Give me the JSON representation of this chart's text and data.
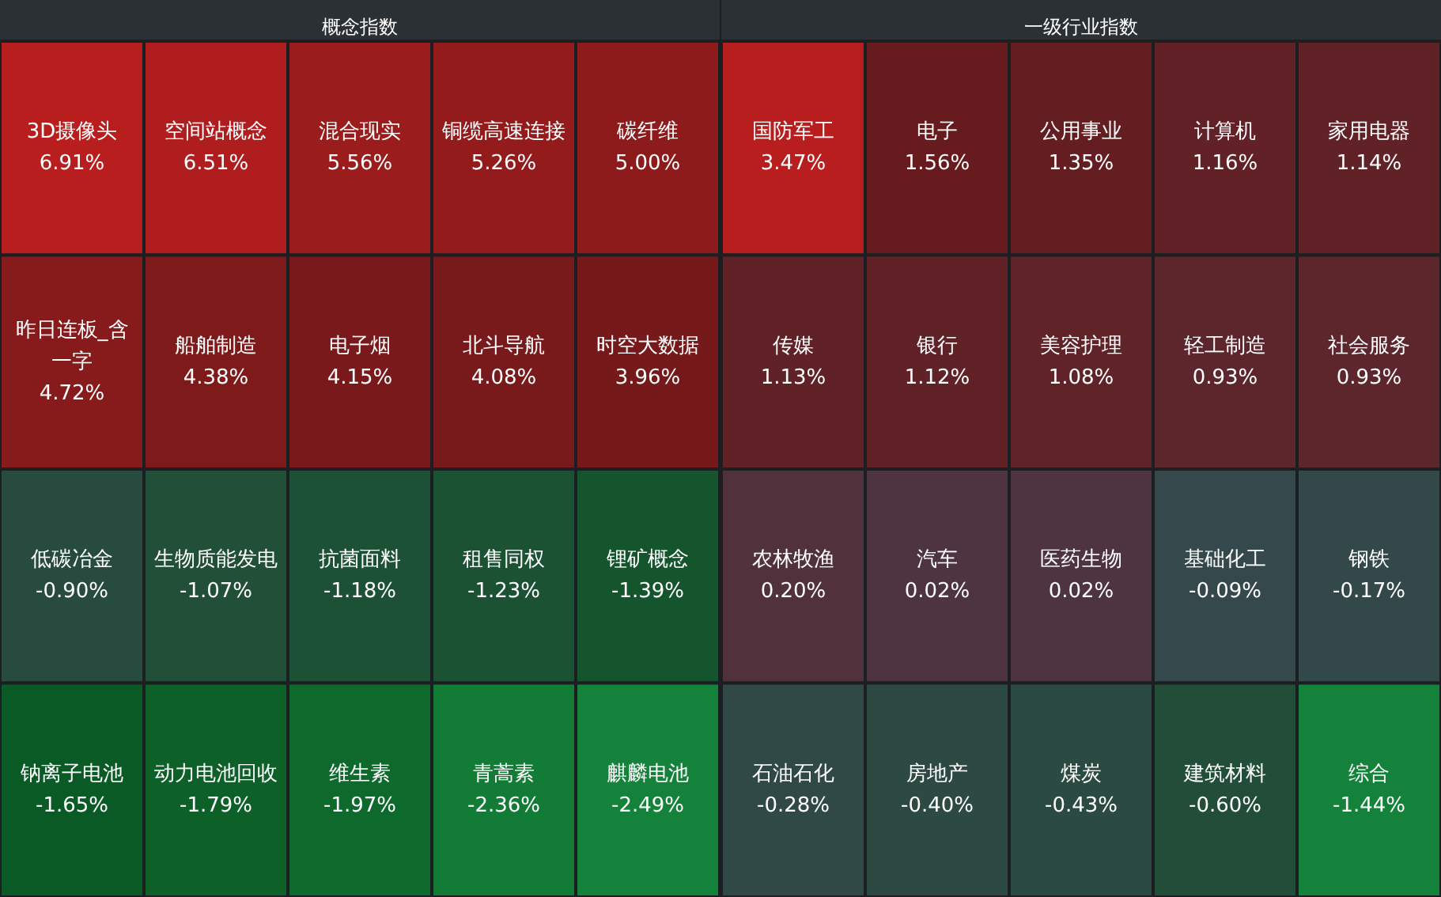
{
  "chart_data": [
    {
      "type": "other",
      "title": "概念指数",
      "categories": [
        "3D摄像头",
        "空间站概念",
        "混合现实",
        "铜缆高速连接",
        "碳纤维",
        "昨日连板_含一字",
        "船舶制造",
        "电子烟",
        "北斗导航",
        "时空大数据",
        "低碳冶金",
        "生物质能发电",
        "抗菌面料",
        "租售同权",
        "锂矿概念",
        "钠离子电池",
        "动力电池回收",
        "维生素",
        "青蒿素",
        "麒麟电池"
      ],
      "values": [
        6.91,
        6.51,
        5.56,
        5.26,
        5.0,
        4.72,
        4.38,
        4.15,
        4.08,
        3.96,
        -0.9,
        -1.07,
        -1.18,
        -1.23,
        -1.39,
        -1.65,
        -1.79,
        -1.97,
        -2.36,
        -2.49
      ],
      "value_labels": [
        "6.91%",
        "6.51%",
        "5.56%",
        "5.26%",
        "5.00%",
        "4.72%",
        "4.38%",
        "4.15%",
        "4.08%",
        "3.96%",
        "-0.90%",
        "-1.07%",
        "-1.18%",
        "-1.23%",
        "-1.39%",
        "-1.65%",
        "-1.79%",
        "-1.97%",
        "-2.36%",
        "-2.49%"
      ]
    },
    {
      "type": "other",
      "title": "一级行业指数",
      "categories": [
        "国防军工",
        "电子",
        "公用事业",
        "计算机",
        "家用电器",
        "传媒",
        "银行",
        "美容护理",
        "轻工制造",
        "社会服务",
        "农林牧渔",
        "汽车",
        "医药生物",
        "基础化工",
        "钢铁",
        "石油石化",
        "房地产",
        "煤炭",
        "建筑材料",
        "综合"
      ],
      "values": [
        3.47,
        1.56,
        1.35,
        1.16,
        1.14,
        1.13,
        1.12,
        1.08,
        0.93,
        0.93,
        0.2,
        0.02,
        0.02,
        -0.09,
        -0.17,
        -0.28,
        -0.4,
        -0.43,
        -0.6,
        -1.44
      ],
      "value_labels": [
        "3.47%",
        "1.56%",
        "1.35%",
        "1.16%",
        "1.14%",
        "1.13%",
        "1.12%",
        "1.08%",
        "0.93%",
        "0.93%",
        "0.20%",
        "0.02%",
        "0.02%",
        "-0.09%",
        "-0.17%",
        "-0.28%",
        "-0.40%",
        "-0.43%",
        "-0.60%",
        "-1.44%"
      ]
    }
  ]
}
